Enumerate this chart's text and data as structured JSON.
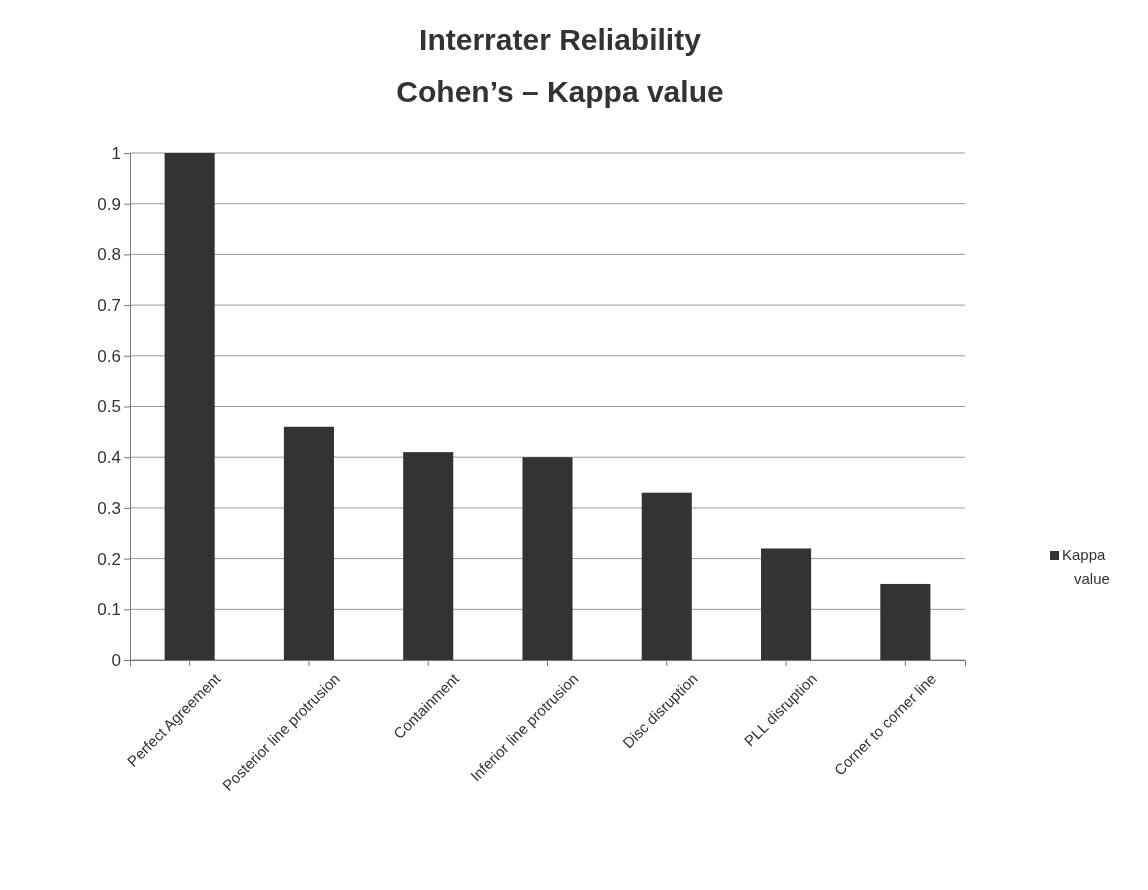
{
  "chart_data": {
    "type": "bar",
    "title": "Interrater Reliability",
    "subtitle": "Cohen’s – Kappa value",
    "categories": [
      "Perfect Agreement",
      "Posterior line protrusion",
      "Containment",
      "Inferior line protrusion",
      "Disc disruption",
      "PLL disruption",
      "Corner to corner line"
    ],
    "series": [
      {
        "name": "Kappa value",
        "color": "#333333",
        "values": [
          1,
          0.46,
          0.41,
          0.4,
          0.33,
          0.22,
          0.15
        ]
      }
    ],
    "ylim": [
      0,
      1
    ],
    "yticks": [
      0,
      0.1,
      0.2,
      0.3,
      0.4,
      0.5,
      0.6,
      0.7,
      0.8,
      0.9,
      1
    ],
    "grid": "y",
    "legend": "right"
  }
}
